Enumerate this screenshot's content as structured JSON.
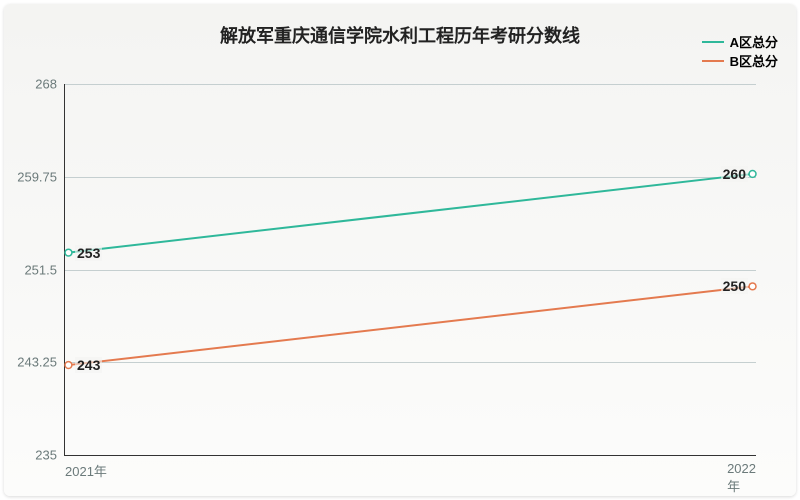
{
  "chart": {
    "type": "line",
    "title": "解放军重庆通信学院水利工程历年考研分数线",
    "title_fontsize": 18,
    "title_color": "#222222",
    "background_gradient_top": "#f4f4f2",
    "background_gradient_bottom": "#fcfcfb",
    "grid_color": "#c5cfd0",
    "axis_color": "#333333",
    "tick_color": "#6b7a7a",
    "tick_fontsize": 13,
    "label_fontsize": 13,
    "value_label_fontsize": 14,
    "ylim": [
      235,
      268
    ],
    "yticks": [
      235,
      243.25,
      251.5,
      259.75,
      268
    ],
    "ytick_labels": [
      "235",
      "243.25",
      "251.5",
      "259.75",
      "268"
    ],
    "xticks": [
      "2021年",
      "2022年"
    ],
    "series": [
      {
        "name": "A区总分",
        "color": "#2fb89a",
        "line_width": 2,
        "values": [
          253,
          260
        ],
        "value_labels": [
          "253",
          "260"
        ]
      },
      {
        "name": "B区总分",
        "color": "#e47a4f",
        "line_width": 2,
        "values": [
          243,
          250
        ],
        "value_labels": [
          "243",
          "250"
        ]
      }
    ],
    "legend": {
      "position": "top-right",
      "fontsize": 13,
      "item_gap": 2
    }
  }
}
